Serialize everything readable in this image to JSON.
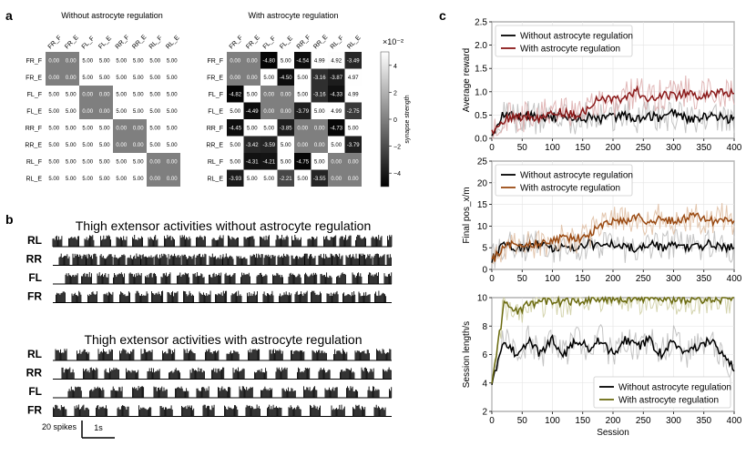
{
  "panel_letters": {
    "a": "a",
    "b": "b",
    "c": "c"
  },
  "heatmaps": {
    "labels": [
      "FR_F",
      "FR_E",
      "FL_F",
      "FL_E",
      "RR_F",
      "RR_E",
      "RL_F",
      "RL_E"
    ],
    "colorbar": {
      "label": "synapse strength",
      "exponent": "×10⁻²",
      "ticks": [
        "4",
        "2",
        "0",
        "−2",
        "−4"
      ],
      "range": [
        -5,
        5
      ]
    },
    "left": {
      "title": "Without astrocyte regulation",
      "values": [
        [
          "0.00",
          "0.00",
          "5.00",
          "5.00",
          "5.00",
          "5.00",
          "5.00",
          "5.00"
        ],
        [
          "0.00",
          "0.00",
          "5.00",
          "5.00",
          "5.00",
          "5.00",
          "5.00",
          "5.00"
        ],
        [
          "5.00",
          "5.00",
          "0.00",
          "0.00",
          "5.00",
          "5.00",
          "5.00",
          "5.00"
        ],
        [
          "5.00",
          "5.00",
          "0.00",
          "0.00",
          "5.00",
          "5.00",
          "5.00",
          "5.00"
        ],
        [
          "5.00",
          "5.00",
          "5.00",
          "5.00",
          "0.00",
          "0.00",
          "5.00",
          "5.00"
        ],
        [
          "5.00",
          "5.00",
          "5.00",
          "5.00",
          "0.00",
          "0.00",
          "5.00",
          "5.00"
        ],
        [
          "5.00",
          "5.00",
          "5.00",
          "5.00",
          "5.00",
          "5.00",
          "0.00",
          "0.00"
        ],
        [
          "5.00",
          "5.00",
          "5.00",
          "5.00",
          "5.00",
          "5.00",
          "0.00",
          "0.00"
        ]
      ]
    },
    "right": {
      "title": "With astrocyte regulation",
      "values": [
        [
          "0.00",
          "0.00",
          "-4.80",
          "5.00",
          "-4.54",
          "4.99",
          "4.92",
          "-3.49"
        ],
        [
          "0.00",
          "0.00",
          "5.00",
          "-4.50",
          "5.00",
          "-3.16",
          "-3.87",
          "4.97"
        ],
        [
          "-4.82",
          "5.00",
          "0.00",
          "0.00",
          "5.00",
          "-3.16",
          "-4.33",
          "4.99"
        ],
        [
          "5.00",
          "-4.49",
          "0.00",
          "0.00",
          "-3.79",
          "5.00",
          "4.99",
          "-2.75"
        ],
        [
          "-4.45",
          "5.00",
          "5.00",
          "-3.85",
          "0.00",
          "0.00",
          "-4.73",
          "5.00"
        ],
        [
          "5.00",
          "-3.42",
          "-3.59",
          "5.00",
          "0.00",
          "0.00",
          "5.00",
          "-3.79"
        ],
        [
          "5.00",
          "-4.31",
          "-4.21",
          "5.00",
          "-4.75",
          "5.00",
          "0.00",
          "0.00"
        ],
        [
          "-3.93",
          "5.00",
          "5.00",
          "-2.21",
          "5.00",
          "-3.55",
          "0.00",
          "0.00"
        ]
      ]
    }
  },
  "rasters": {
    "rows": [
      "RL",
      "RR",
      "FL",
      "FR"
    ],
    "top": {
      "title": "Thigh extensor activities without astrocyte regulation"
    },
    "bottom": {
      "title": "Thigh extensor activities with astrocyte regulation"
    },
    "scalebar": {
      "y_label": "20 spikes",
      "x_label": "1s"
    }
  },
  "chart_data": [
    {
      "type": "line",
      "ylabel": "Average reward",
      "xlim": [
        0,
        400
      ],
      "ylim": [
        0,
        2.5
      ],
      "yticks": [
        "0.0",
        "0.5",
        "1.0",
        "1.5",
        "2.0",
        "2.5"
      ],
      "xticks": [
        "0",
        "50",
        "100",
        "150",
        "200",
        "250",
        "300",
        "350",
        "400"
      ],
      "legend": "top-left",
      "series": [
        {
          "name": "Without astrocyte regulation",
          "color": "#000000",
          "band": "#b5b5b5",
          "x": [
            0,
            20,
            40,
            60,
            80,
            100,
            120,
            140,
            160,
            180,
            200,
            220,
            240,
            260,
            280,
            300,
            320,
            340,
            360,
            380,
            400
          ],
          "y": [
            0.1,
            0.55,
            0.45,
            0.5,
            0.4,
            0.45,
            0.5,
            0.4,
            0.45,
            0.4,
            0.45,
            0.5,
            0.4,
            0.5,
            0.4,
            0.55,
            0.45,
            0.4,
            0.5,
            0.45,
            0.4
          ]
        },
        {
          "name": "With astrocyte regulation",
          "color": "#8b1a1a",
          "band": "#d9a5a5",
          "x": [
            0,
            20,
            40,
            60,
            80,
            100,
            120,
            140,
            160,
            180,
            200,
            220,
            240,
            260,
            280,
            300,
            320,
            340,
            360,
            380,
            400
          ],
          "y": [
            0.1,
            0.4,
            0.45,
            0.5,
            0.45,
            0.6,
            0.55,
            0.5,
            0.65,
            0.9,
            0.8,
            0.9,
            1.0,
            0.85,
            0.95,
            0.9,
            1.0,
            0.9,
            0.95,
            1.0,
            0.95
          ]
        }
      ]
    },
    {
      "type": "line",
      "ylabel": "Final pos_x/m",
      "xlim": [
        0,
        400
      ],
      "ylim": [
        0,
        25
      ],
      "yticks": [
        "0",
        "5",
        "10",
        "15",
        "20",
        "25"
      ],
      "xticks": [
        "0",
        "50",
        "100",
        "150",
        "200",
        "250",
        "300",
        "350",
        "400"
      ],
      "legend": "top-left",
      "series": [
        {
          "name": "Without astrocyte regulation",
          "color": "#000000",
          "band": "#b5b5b5",
          "x": [
            0,
            20,
            40,
            60,
            80,
            100,
            120,
            140,
            160,
            180,
            200,
            220,
            240,
            260,
            280,
            300,
            320,
            340,
            360,
            380,
            400
          ],
          "y": [
            2,
            6,
            5,
            5,
            6,
            5,
            5,
            5,
            6,
            5,
            6,
            5,
            5,
            6,
            5,
            6,
            5,
            5,
            6,
            5,
            5
          ]
        },
        {
          "name": "With astrocyte regulation",
          "color": "#9a4a12",
          "band": "#dcb89a",
          "x": [
            0,
            20,
            40,
            60,
            80,
            100,
            120,
            140,
            160,
            180,
            200,
            220,
            240,
            260,
            280,
            300,
            320,
            340,
            360,
            380,
            400
          ],
          "y": [
            2,
            5,
            6,
            6,
            6,
            7,
            7,
            7,
            8,
            10,
            11,
            11,
            12,
            11,
            12,
            11,
            12,
            12,
            11,
            12,
            11
          ]
        }
      ]
    },
    {
      "type": "line",
      "ylabel": "Session length/s",
      "xlabel": "Session",
      "xlim": [
        0,
        400
      ],
      "ylim": [
        2,
        10
      ],
      "yticks": [
        "2",
        "4",
        "6",
        "8",
        "10"
      ],
      "xticks": [
        "0",
        "50",
        "100",
        "150",
        "200",
        "250",
        "300",
        "350",
        "400"
      ],
      "legend": "bottom-right",
      "series": [
        {
          "name": "Without astrocyte regulation",
          "color": "#000000",
          "band": "#b5b5b5",
          "x": [
            0,
            20,
            40,
            60,
            80,
            100,
            120,
            140,
            160,
            180,
            200,
            220,
            240,
            260,
            280,
            300,
            320,
            340,
            360,
            380,
            400
          ],
          "y": [
            4,
            7,
            6,
            7,
            6,
            7,
            6,
            7,
            6.5,
            7,
            6,
            7,
            6.5,
            7,
            6,
            7,
            6,
            6.5,
            7,
            6,
            5
          ]
        },
        {
          "name": "With astrocyte regulation",
          "color": "#6b6b10",
          "band": "#c9c99a",
          "x": [
            0,
            20,
            40,
            60,
            80,
            100,
            120,
            140,
            160,
            180,
            200,
            220,
            240,
            260,
            280,
            300,
            320,
            340,
            360,
            380,
            400
          ],
          "y": [
            4,
            9.5,
            9,
            9.5,
            9.6,
            9.8,
            9.7,
            9.8,
            9.8,
            9.9,
            9.9,
            9.8,
            9.9,
            9.9,
            9.9,
            9.9,
            9.9,
            9.9,
            9.9,
            9.9,
            9.9
          ]
        }
      ]
    }
  ]
}
